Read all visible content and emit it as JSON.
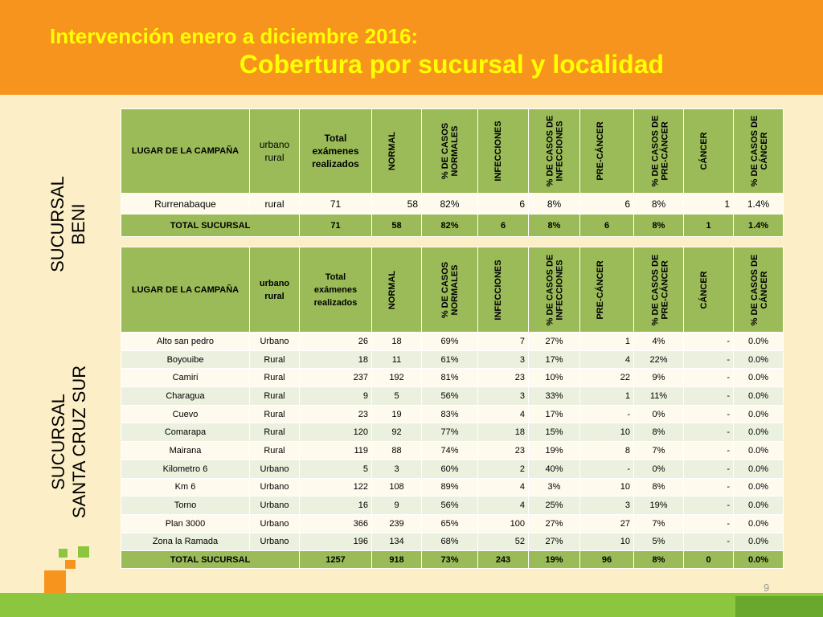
{
  "header": {
    "title_line1": "Intervención enero a diciembre 2016:",
    "title_line2": "Cobertura por sucursal y localidad"
  },
  "page_number": "9",
  "colors": {
    "header_orange": "#f7941d",
    "title_yellow": "#ffff00",
    "table_green": "#9bbb59",
    "background_cream": "#fcefc7",
    "bar_green": "#8cc63f"
  },
  "beni": {
    "side_label_line1": "SUCURSAL",
    "side_label_line2": "BENI",
    "headers": {
      "lugar": "LUGAR DE LA CAMPAÑA",
      "urbano": "urbano rural",
      "total": "Total exámenes realizados",
      "normal": "NORMAL",
      "pct_normal": "% DE CASOS NORMALES",
      "infecciones": "INFECCIONES",
      "pct_infecciones": "% DE CASOS DE INFECCIONES",
      "precancer": "PRE-CÁNCER",
      "pct_precancer": "% DE CASOS DE PRE-CÁNCER",
      "cancer": "CÁNCER",
      "pct_cancer": "% DE CASOS DE CÁNCER"
    },
    "rows": [
      {
        "lugar": "Rurrenabaque",
        "urbano": "rural",
        "total": "71",
        "normal": "58",
        "pct_normal": "82%",
        "infecciones": "6",
        "pct_infecciones": "8%",
        "precancer": "6",
        "pct_precancer": "8%",
        "cancer": "1",
        "pct_cancer": "1.4%"
      }
    ],
    "total": {
      "label": "TOTAL SUCURSAL",
      "total": "71",
      "normal": "58",
      "pct_normal": "82%",
      "infecciones": "6",
      "pct_infecciones": "8%",
      "precancer": "6",
      "pct_precancer": "8%",
      "cancer": "1",
      "pct_cancer": "1.4%"
    }
  },
  "scz": {
    "side_label_line1": "SUCURSAL",
    "side_label_line2": "SANTA CRUZ SUR",
    "headers": {
      "lugar": "LUGAR DE LA CAMPAÑA",
      "urbano": "urbano rural",
      "total": "Total exámenes realizados",
      "normal": "NORMAL",
      "pct_normal": "% DE CASOS NORMALES",
      "infecciones": "INFECCIONES",
      "pct_infecciones": "% DE CASOS DE INFECCIONES",
      "precancer": "PRE-CÁNCER",
      "pct_precancer": "% DE CASOS DE PRE-CÁNCER",
      "cancer": "CÁNCER",
      "pct_cancer": "% DE CASOS DE CÁNCER"
    },
    "rows": [
      {
        "lugar": "Alto san pedro",
        "urbano": "Urbano",
        "total": "26",
        "normal": "18",
        "pct_normal": "69%",
        "infecciones": "7",
        "pct_infecciones": "27%",
        "precancer": "1",
        "pct_precancer": "4%",
        "cancer": "-",
        "pct_cancer": "0.0%"
      },
      {
        "lugar": "Boyouibe",
        "urbano": "Rural",
        "total": "18",
        "normal": "11",
        "pct_normal": "61%",
        "infecciones": "3",
        "pct_infecciones": "17%",
        "precancer": "4",
        "pct_precancer": "22%",
        "cancer": "-",
        "pct_cancer": "0.0%"
      },
      {
        "lugar": "Camiri",
        "urbano": "Rural",
        "total": "237",
        "normal": "192",
        "pct_normal": "81%",
        "infecciones": "23",
        "pct_infecciones": "10%",
        "precancer": "22",
        "pct_precancer": "9%",
        "cancer": "-",
        "pct_cancer": "0.0%"
      },
      {
        "lugar": "Charagua",
        "urbano": "Rural",
        "total": "9",
        "normal": "5",
        "pct_normal": "56%",
        "infecciones": "3",
        "pct_infecciones": "33%",
        "precancer": "1",
        "pct_precancer": "11%",
        "cancer": "-",
        "pct_cancer": "0.0%"
      },
      {
        "lugar": "Cuevo",
        "urbano": "Rural",
        "total": "23",
        "normal": "19",
        "pct_normal": "83%",
        "infecciones": "4",
        "pct_infecciones": "17%",
        "precancer": "-",
        "pct_precancer": "0%",
        "cancer": "-",
        "pct_cancer": "0.0%"
      },
      {
        "lugar": "Comarapa",
        "urbano": "Rural",
        "total": "120",
        "normal": "92",
        "pct_normal": "77%",
        "infecciones": "18",
        "pct_infecciones": "15%",
        "precancer": "10",
        "pct_precancer": "8%",
        "cancer": "-",
        "pct_cancer": "0.0%"
      },
      {
        "lugar": "Mairana",
        "urbano": "Rural",
        "total": "119",
        "normal": "88",
        "pct_normal": "74%",
        "infecciones": "23",
        "pct_infecciones": "19%",
        "precancer": "8",
        "pct_precancer": "7%",
        "cancer": "-",
        "pct_cancer": "0.0%"
      },
      {
        "lugar": "Kilometro 6",
        "urbano": "Urbano",
        "total": "5",
        "normal": "3",
        "pct_normal": "60%",
        "infecciones": "2",
        "pct_infecciones": "40%",
        "precancer": "-",
        "pct_precancer": "0%",
        "cancer": "-",
        "pct_cancer": "0.0%"
      },
      {
        "lugar": "Km 6",
        "urbano": "Urbano",
        "total": "122",
        "normal": "108",
        "pct_normal": "89%",
        "infecciones": "4",
        "pct_infecciones": "3%",
        "precancer": "10",
        "pct_precancer": "8%",
        "cancer": "-",
        "pct_cancer": "0.0%"
      },
      {
        "lugar": "Torno",
        "urbano": "Urbano",
        "total": "16",
        "normal": "9",
        "pct_normal": "56%",
        "infecciones": "4",
        "pct_infecciones": "25%",
        "precancer": "3",
        "pct_precancer": "19%",
        "cancer": "-",
        "pct_cancer": "0.0%"
      },
      {
        "lugar": "Plan 3000",
        "urbano": "Urbano",
        "total": "366",
        "normal": "239",
        "pct_normal": "65%",
        "infecciones": "100",
        "pct_infecciones": "27%",
        "precancer": "27",
        "pct_precancer": "7%",
        "cancer": "-",
        "pct_cancer": "0.0%"
      },
      {
        "lugar": "Zona la Ramada",
        "urbano": "Urbano",
        "total": "196",
        "normal": "134",
        "pct_normal": "68%",
        "infecciones": "52",
        "pct_infecciones": "27%",
        "precancer": "10",
        "pct_precancer": "5%",
        "cancer": "-",
        "pct_cancer": "0.0%"
      }
    ],
    "total": {
      "label": "TOTAL SUCURSAL",
      "total": "1257",
      "normal": "918",
      "pct_normal": "73%",
      "infecciones": "243",
      "pct_infecciones": "19%",
      "precancer": "96",
      "pct_precancer": "8%",
      "cancer": "0",
      "pct_cancer": "0.0%"
    }
  }
}
